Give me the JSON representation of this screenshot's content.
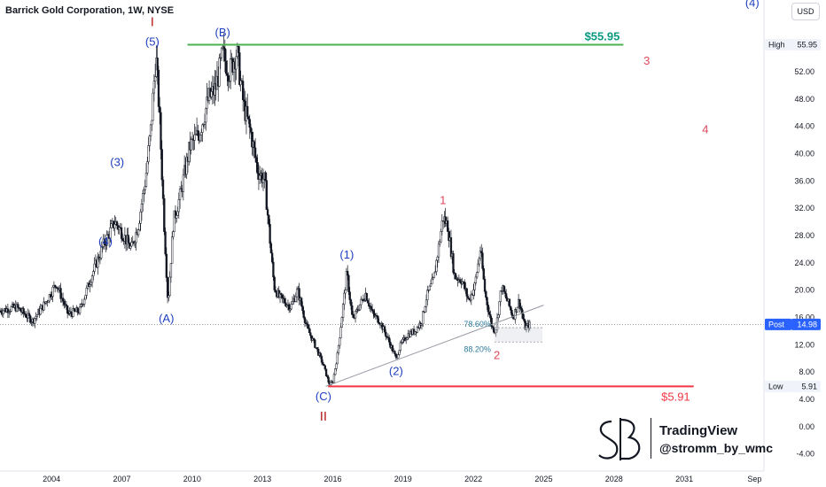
{
  "header": {
    "title": "Barrick Gold Corporation, 1W, NYSE",
    "currency": "USD"
  },
  "watermark": {
    "platform": "TradingView",
    "handle": "@stromm_by_wmc"
  },
  "colors": {
    "candle": "#131722",
    "wave_blue": "#1e3fbf",
    "wave_red_major": "#b71c1c",
    "wave_red_minor": "#e0475b",
    "high_line": "#4caf50",
    "high_label": "#089981",
    "low_line": "#f23645",
    "price_badge": "#2962ff",
    "fib_text": "#2c7a9a"
  },
  "chart_data": {
    "type": "candlestick",
    "title": "Barrick Gold Corporation, 1W, NYSE",
    "x_axis": {
      "type": "time",
      "range": [
        2001.8,
        2034.4
      ],
      "tick_labels": [
        "2004",
        "2007",
        "2010",
        "2013",
        "2016",
        "2019",
        "2022",
        "2025",
        "2028",
        "2031",
        "Sep"
      ],
      "tick_values": [
        2004,
        2007,
        2010,
        2013,
        2016,
        2019,
        2022,
        2025,
        2028,
        2031,
        2034
      ]
    },
    "y_axis": {
      "range": [
        -6.5,
        62.5
      ],
      "ticks": [
        -4,
        0,
        4,
        8,
        12,
        16,
        20,
        24,
        28,
        32,
        36,
        40,
        44,
        48,
        52
      ],
      "tick_labels": [
        "-4.00",
        "0.00",
        "4.00",
        "8.00",
        "12.00",
        "16.00",
        "20.00",
        "24.00",
        "28.00",
        "32.00",
        "36.00",
        "40.00",
        "44.00",
        "48.00",
        "52.00"
      ],
      "grid": false
    },
    "price_path": [
      [
        2001.8,
        17.0
      ],
      [
        2002.5,
        17.5
      ],
      [
        2003.2,
        15.5
      ],
      [
        2003.8,
        18.5
      ],
      [
        2004.2,
        21.0
      ],
      [
        2004.7,
        16.5
      ],
      [
        2005.2,
        17.0
      ],
      [
        2005.7,
        22.0
      ],
      [
        2006.2,
        26.5
      ],
      [
        2006.7,
        30.0
      ],
      [
        2007.0,
        28.5
      ],
      [
        2007.4,
        26.0
      ],
      [
        2007.7,
        29.5
      ],
      [
        2008.0,
        36.0
      ],
      [
        2008.25,
        44.0
      ],
      [
        2008.45,
        54.5
      ],
      [
        2008.6,
        46.0
      ],
      [
        2008.8,
        30.0
      ],
      [
        2008.97,
        18.0
      ],
      [
        2009.2,
        30.0
      ],
      [
        2009.5,
        34.0
      ],
      [
        2009.9,
        41.0
      ],
      [
        2010.3,
        43.0
      ],
      [
        2010.7,
        48.0
      ],
      [
        2011.0,
        49.5
      ],
      [
        2011.3,
        54.5
      ],
      [
        2011.6,
        52.0
      ],
      [
        2011.9,
        55.0
      ],
      [
        2012.2,
        47.0
      ],
      [
        2012.5,
        43.0
      ],
      [
        2012.8,
        37.5
      ],
      [
        2013.1,
        36.0
      ],
      [
        2013.3,
        28.0
      ],
      [
        2013.5,
        20.5
      ],
      [
        2013.7,
        19.0
      ],
      [
        2013.9,
        18.5
      ],
      [
        2014.2,
        17.5
      ],
      [
        2014.5,
        20.0
      ],
      [
        2014.9,
        14.5
      ],
      [
        2015.3,
        11.5
      ],
      [
        2015.6,
        9.0
      ],
      [
        2015.85,
        6.2
      ],
      [
        2016.0,
        6.5
      ],
      [
        2016.2,
        10.5
      ],
      [
        2016.45,
        18.0
      ],
      [
        2016.6,
        22.5
      ],
      [
        2016.85,
        15.5
      ],
      [
        2017.1,
        17.5
      ],
      [
        2017.4,
        19.5
      ],
      [
        2017.7,
        16.5
      ],
      [
        2018.0,
        15.5
      ],
      [
        2018.4,
        12.5
      ],
      [
        2018.7,
        10.0
      ],
      [
        2018.9,
        12.0
      ],
      [
        2019.2,
        13.5
      ],
      [
        2019.5,
        14.0
      ],
      [
        2019.8,
        15.5
      ],
      [
        2020.0,
        19.0
      ],
      [
        2020.3,
        21.5
      ],
      [
        2020.55,
        27.0
      ],
      [
        2020.7,
        30.7
      ],
      [
        2020.9,
        29.5
      ],
      [
        2021.2,
        22.0
      ],
      [
        2021.5,
        21.5
      ],
      [
        2021.8,
        18.5
      ],
      [
        2022.05,
        20.5
      ],
      [
        2022.3,
        26.0
      ],
      [
        2022.5,
        19.5
      ],
      [
        2022.8,
        14.5
      ],
      [
        2022.95,
        14.0
      ],
      [
        2023.2,
        20.5
      ],
      [
        2023.5,
        18.0
      ],
      [
        2023.7,
        16.0
      ],
      [
        2023.95,
        18.5
      ],
      [
        2024.2,
        14.5
      ],
      [
        2024.45,
        14.98
      ]
    ],
    "high": {
      "label": "High",
      "value": 55.95,
      "text": "$55.95",
      "from_x": 2009.8,
      "to_x": 2028.4
    },
    "low": {
      "label": "Low",
      "value": 5.91,
      "text": "$5.91",
      "from_x": 2015.8,
      "to_x": 2031.4
    },
    "last_price": {
      "label": "Post",
      "value": 14.98
    },
    "trendline": {
      "start": [
        2015.7,
        5.9
      ],
      "end": [
        2025.0,
        17.8
      ]
    },
    "fib_levels": [
      {
        "label": "78.60%",
        "value": 14.5
      },
      {
        "label": "88.20%",
        "value": 12.4
      }
    ],
    "fib_box": {
      "from_x": 2022.9,
      "to_x": 2024.95
    },
    "wave_labels": [
      {
        "text": "I",
        "x": 2008.3,
        "y": 58.7,
        "group": "major"
      },
      {
        "text": "(5)",
        "x": 2008.3,
        "y": 55.8,
        "group": "blue"
      },
      {
        "text": "(B)",
        "x": 2011.3,
        "y": 57.2,
        "group": "blue"
      },
      {
        "text": "(3)",
        "x": 2006.8,
        "y": 38.2,
        "group": "blue"
      },
      {
        "text": "(4)",
        "x": 2006.3,
        "y": 26.6,
        "group": "blue"
      },
      {
        "text": "(A)",
        "x": 2008.9,
        "y": 15.3,
        "group": "blue"
      },
      {
        "text": "(1)",
        "x": 2016.6,
        "y": 24.6,
        "group": "blue"
      },
      {
        "text": "(2)",
        "x": 2018.7,
        "y": 7.6,
        "group": "blue"
      },
      {
        "text": "(C)",
        "x": 2015.6,
        "y": 3.9,
        "group": "blue"
      },
      {
        "text": "II",
        "x": 2015.6,
        "y": 0.9,
        "group": "major"
      },
      {
        "text": "1",
        "x": 2020.7,
        "y": 32.6,
        "group": "minor"
      },
      {
        "text": "2",
        "x": 2023.0,
        "y": 9.9,
        "group": "minor"
      },
      {
        "text": "3",
        "x": 2029.4,
        "y": 53.0,
        "group": "minor"
      },
      {
        "text": "4",
        "x": 2031.9,
        "y": 43.0,
        "group": "minor"
      },
      {
        "text": "(4)",
        "x": 2033.9,
        "y": 61.5,
        "group": "blue"
      }
    ]
  }
}
